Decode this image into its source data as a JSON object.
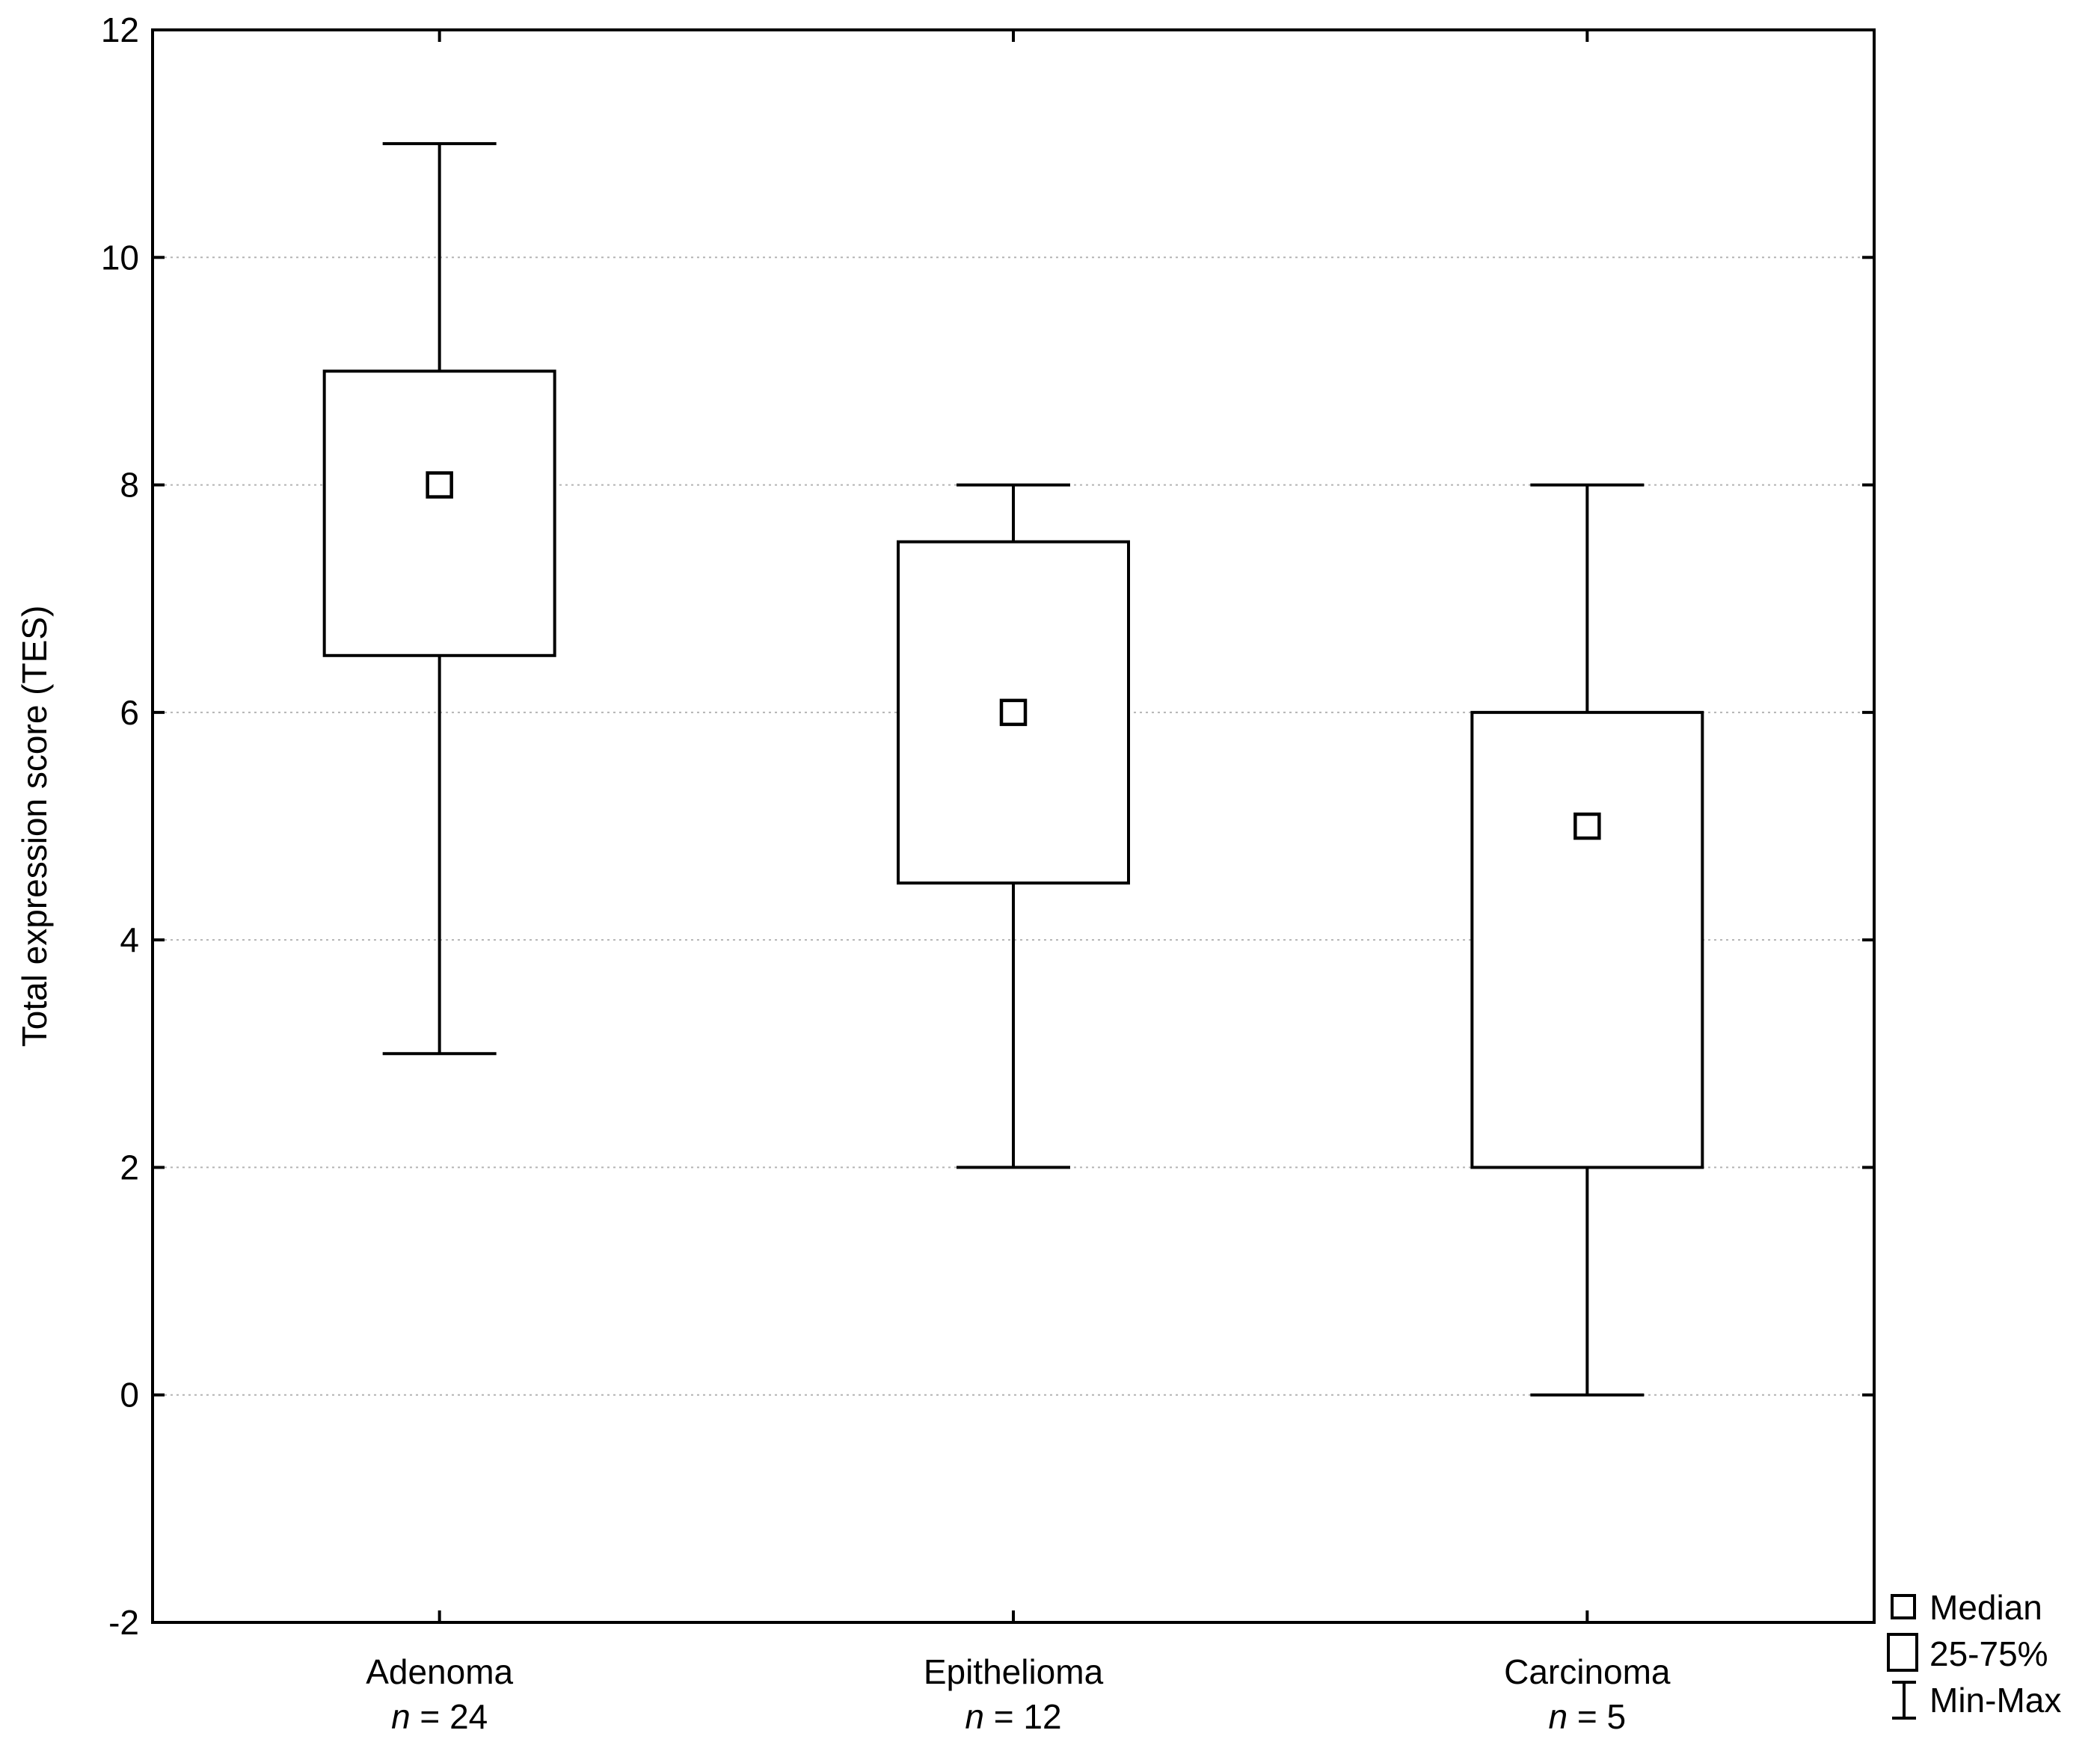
{
  "chart_data": {
    "type": "box",
    "ylabel": "Total expression score (TES)",
    "xlabel": "",
    "ylim": [
      -2,
      12
    ],
    "y_ticks": [
      -2,
      0,
      2,
      4,
      6,
      8,
      10,
      12
    ],
    "grid": "horizontal-dotted",
    "legend_position": "bottom-right outside",
    "categories": [
      {
        "name": "Adenoma",
        "n_prefix": "n",
        "n_suffix": " = 24",
        "min": 3,
        "q1": 6.5,
        "median": 8,
        "q3": 9,
        "max": 11
      },
      {
        "name": "Epithelioma",
        "n_prefix": "n",
        "n_suffix": " = 12",
        "min": 2,
        "q1": 4.5,
        "median": 6,
        "q3": 7.5,
        "max": 8
      },
      {
        "name": "Carcinoma",
        "n_prefix": "n",
        "n_suffix": " = 5",
        "min": 0,
        "q1": 2,
        "median": 5,
        "q3": 6,
        "max": 8
      }
    ],
    "legend": [
      {
        "key": "median",
        "label": "Median",
        "symbol": "small-square"
      },
      {
        "key": "iqr",
        "label": "25-75%",
        "symbol": "box"
      },
      {
        "key": "range",
        "label": "Min-Max",
        "symbol": "whisker"
      }
    ]
  }
}
